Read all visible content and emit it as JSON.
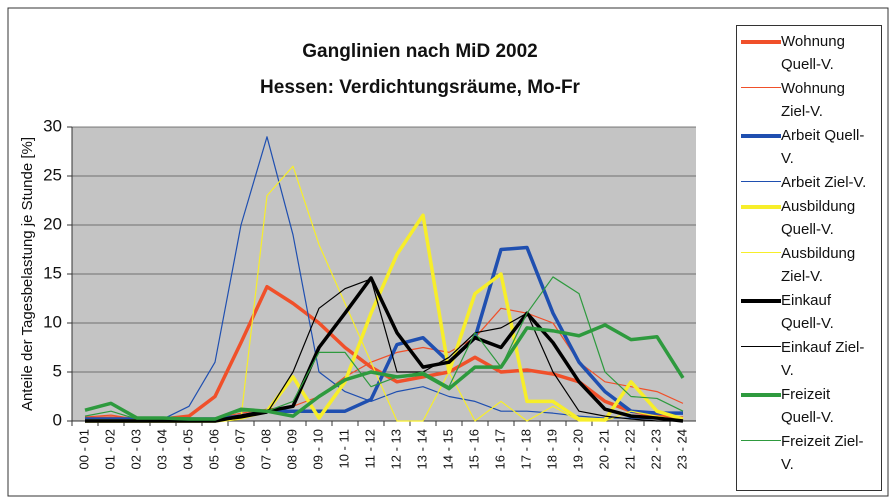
{
  "chart_data": {
    "type": "line",
    "title": "Ganglinien nach MiD 2002",
    "subtitle": "Hessen: Verdichtungsräume, Mo-Fr",
    "y_label": "Anteile der Tagesbelastung  je Stunde [%]",
    "categories": [
      "00 - 01",
      "01 - 02",
      "02 - 03",
      "03 - 04",
      "04 - 05",
      "05 - 06",
      "06 - 07",
      "07 - 08",
      "08 - 09",
      "09 - 10",
      "10 - 11",
      "11 - 12",
      "12 - 13",
      "13 - 14",
      "14 - 15",
      "15 - 16",
      "16 - 17",
      "17 - 18",
      "18 - 19",
      "19 - 20",
      "20 - 21",
      "21 - 22",
      "22 - 23",
      "23 - 24"
    ],
    "ylim": [
      0,
      30
    ],
    "yticks": [
      0,
      5,
      10,
      15,
      20,
      25,
      30
    ],
    "grid": true,
    "series": [
      {
        "name": "Wohnung Quell-V.",
        "color": "#f0502a",
        "line_width": 3.5,
        "values": [
          0.2,
          0.3,
          0.2,
          0.2,
          0.5,
          2.5,
          8,
          13.7,
          12,
          10,
          7.5,
          5.5,
          4,
          4.5,
          5,
          6.5,
          5,
          5.2,
          4.8,
          4,
          2,
          1,
          0.5,
          0.3
        ]
      },
      {
        "name": "Wohnung Ziel-V.",
        "color": "#f0502a",
        "line_width": 1.2,
        "values": [
          0.4,
          0.6,
          0.2,
          0.2,
          0.2,
          0.3,
          0.8,
          1.2,
          1.5,
          2.5,
          4.5,
          6,
          7,
          7.5,
          7,
          8.5,
          11.5,
          11,
          10,
          6,
          4,
          3.5,
          3,
          1.8
        ]
      },
      {
        "name": "Arbeit Quell-V.",
        "color": "#1f4fb0",
        "line_width": 3.5,
        "values": [
          0.2,
          0.2,
          0.2,
          0.2,
          0.2,
          0.2,
          0.5,
          1,
          1,
          1,
          1,
          2.2,
          7.8,
          8.5,
          6,
          8.5,
          17.5,
          17.7,
          11,
          6,
          3,
          1,
          0.8,
          0.8
        ]
      },
      {
        "name": "Arbeit Ziel-V.",
        "color": "#1f4fb0",
        "line_width": 1.2,
        "values": [
          0.2,
          0.2,
          0.2,
          0.2,
          1.5,
          6,
          20,
          29,
          19,
          5,
          3,
          2,
          3,
          3.5,
          2.5,
          2,
          1,
          1,
          0.8,
          0.5,
          0.3,
          0.3,
          0.2,
          0.2
        ]
      },
      {
        "name": "Ausbildung Quell-V.",
        "color": "#f7ee2a",
        "line_width": 3.5,
        "values": [
          0,
          0,
          0,
          0,
          0,
          0,
          0.3,
          1,
          4.5,
          0.3,
          4,
          11,
          17,
          21,
          5,
          13,
          15,
          2,
          2,
          0.2,
          0.1,
          4,
          1,
          0.2
        ]
      },
      {
        "name": "Ausbildung Ziel-V.",
        "color": "#f7ee2a",
        "line_width": 1.2,
        "values": [
          0,
          0,
          0,
          0,
          0,
          0,
          0.3,
          23,
          26,
          18,
          12,
          6,
          0,
          0,
          5,
          0,
          2,
          0,
          1.5,
          0,
          0,
          1,
          0.5,
          0
        ]
      },
      {
        "name": "Einkauf Quell-V.",
        "color": "#000000",
        "line_width": 3.5,
        "values": [
          0,
          0,
          0,
          0,
          0,
          0,
          0.5,
          1,
          1.5,
          7.5,
          11,
          14.6,
          9,
          5.5,
          6,
          8.5,
          7.5,
          11,
          8,
          4,
          1.2,
          0.5,
          0.3,
          0
        ]
      },
      {
        "name": "Einkauf Ziel-V.",
        "color": "#000000",
        "line_width": 1.2,
        "values": [
          0,
          0,
          0,
          0,
          0,
          0,
          0.3,
          0.8,
          5,
          11.5,
          13.5,
          14.5,
          5,
          5,
          6.5,
          9,
          9.5,
          11,
          5,
          1,
          0.5,
          0.2,
          0,
          0
        ]
      },
      {
        "name": "Freizeit Quell-V.",
        "color": "#2e9a3e",
        "line_width": 3.5,
        "values": [
          1.1,
          1.8,
          0.3,
          0.3,
          0.2,
          0.2,
          1.2,
          1,
          0.5,
          2.5,
          4.2,
          5,
          4.5,
          4.8,
          3.3,
          5.5,
          5.5,
          9.5,
          9.2,
          8.7,
          9.8,
          8.3,
          8.6,
          4.4
        ]
      },
      {
        "name": "Freizeit Ziel-V.",
        "color": "#2e9a3e",
        "line_width": 1.2,
        "values": [
          0.5,
          1,
          0.2,
          0.2,
          0.2,
          0.3,
          1,
          1,
          2,
          7,
          7,
          3.5,
          4.5,
          5,
          3.5,
          9,
          5.5,
          11,
          14.7,
          13,
          5,
          2.5,
          2.3,
          1
        ]
      }
    ]
  }
}
